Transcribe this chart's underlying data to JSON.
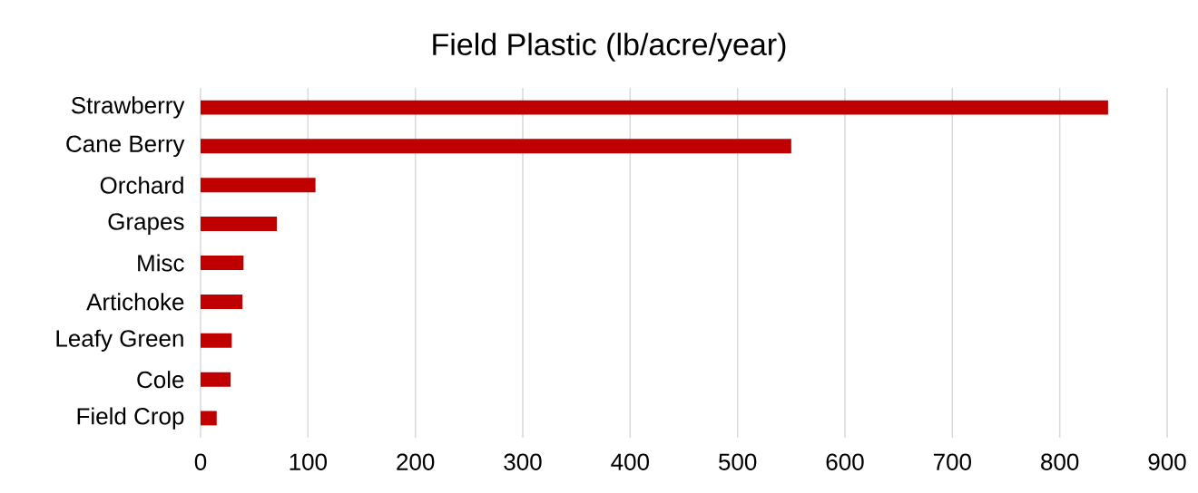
{
  "chart_data": {
    "type": "bar",
    "orientation": "horizontal",
    "title": "Field Plastic (lb/acre/year)",
    "categories": [
      "Strawberry",
      "Cane Berry",
      "Orchard",
      "Grapes",
      "Misc",
      "Artichoke",
      "Leafy Green",
      "Cole",
      "Field Crop"
    ],
    "values": [
      845,
      550,
      107,
      71,
      40,
      39,
      29,
      28,
      15
    ],
    "color": "#c00000",
    "xlim": [
      0,
      900
    ],
    "xticks": [
      0,
      100,
      200,
      300,
      400,
      500,
      600,
      700,
      800,
      900
    ],
    "grid": "x"
  }
}
